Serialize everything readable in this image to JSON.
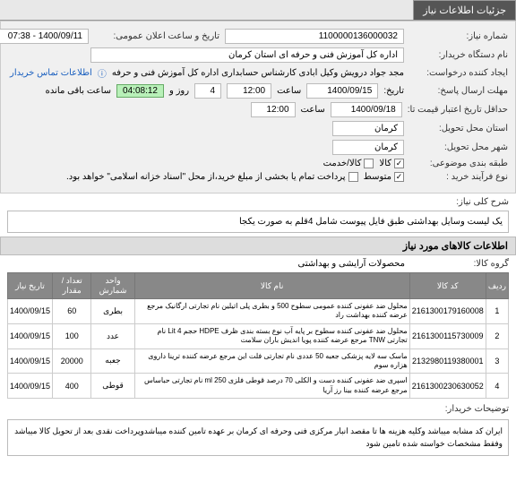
{
  "tabs": {
    "main": "جزئیات اطلاعات نیاز"
  },
  "fields": {
    "need_number_label": "شماره نیاز:",
    "need_number": "1100000136000032",
    "announce_label": "تاریخ و ساعت اعلان عمومی:",
    "announce_value": "1400/09/11 - 07:38",
    "buyer_org_label": "نام دستگاه خریدار:",
    "buyer_org": "اداره کل آموزش فنی و حرفه ای استان کرمان",
    "requester_label": "ایجاد کننده درخواست:",
    "requester": "مجد جواد درویش وکیل ابادی کارشناس حسابداری اداره کل آموزش فنی و حرفه",
    "contact_link": "اطلاعات تماس خریدار",
    "deadline_label": "مهلت ارسال پاسخ:",
    "deadline_tarikh_label": "تاریخ:",
    "deadline_date": "1400/09/15",
    "deadline_saat_label": "ساعت",
    "deadline_time": "12:00",
    "remaining_days": "4",
    "remaining_days_label": "روز و",
    "countdown": "04:08:12",
    "remaining_label": "ساعت باقی مانده",
    "credit_label": "حداقل تاریخ اعتبار قیمت تا:",
    "credit_date": "1400/09/18",
    "credit_time": "12:00",
    "delivery_province_label": "استان محل تحویل:",
    "delivery_province": "کرمان",
    "delivery_city_label": "شهر محل تحویل:",
    "delivery_city": "کرمان",
    "subject_class_label": "طبقه بندی موضوعی:",
    "chk_product": "کالا",
    "chk_service": "کالا/خدمت",
    "process_type_label": "نوع فرآیند خرید :",
    "chk_medium": "متوسط",
    "process_note": "پرداخت تمام یا بخشی از مبلغ خرید،از محل \"اسناد خزانه اسلامی\" خواهد بود.",
    "desc_label": "شرح کلی نیاز:",
    "desc_text": "یک لیست وسایل بهداشتی طبق فایل پیوست شامل 4قلم به صورت یکجا",
    "items_header": "اطلاعات کالاهای مورد نیاز",
    "group_label": "گروه کالا:",
    "group_value": "محصولات آرایشی و بهداشتی",
    "buyer_note_label": "توضیحات خریدار:",
    "buyer_note": "ایران کد مشابه میباشد وکلیه هزینه ها تا مقصد انبار مرکزی فنی وحرفه ای کرمان بر عهده تامین کننده میباشدوپرداخت نقدی بعد از تحویل کالا میباشد وفقط مشخصات خواسته شده تامین شود"
  },
  "table": {
    "cols": {
      "row": "ردیف",
      "code": "کد کالا",
      "name": "نام کالا",
      "unit": "واحد شمارش",
      "qty": "تعداد / مقدار",
      "date": "تاریخ نیاز"
    },
    "rows": [
      {
        "n": "1",
        "code": "2161300179160008",
        "name": "محلول ضد عفونی کننده عمومی سطوح 500 و بطری پلی اتیلین نام تجارتی ارگانیک مرجع عرضه کننده بهداشت راد",
        "unit": "بطری",
        "qty": "60",
        "date": "1400/09/15"
      },
      {
        "n": "2",
        "code": "2161300115730009",
        "name": "محلول ضد عفونی کننده سطوح بر پایه آب نوع بسته بندی ظرف HDPE حجم Lit 4 نام تجارتی TNW مرجع عرضه کننده پویا اندیش باران سلامت",
        "unit": "عدد",
        "qty": "100",
        "date": "1400/09/15"
      },
      {
        "n": "3",
        "code": "2132980119380001",
        "name": "ماسک سه لایه پزشکی جعبه 50 عددی نام تجارتی فلت این مرجع عرضه کننده ترینا داروی هزاره سوم",
        "unit": "جعبه",
        "qty": "20000",
        "date": "1400/09/15"
      },
      {
        "n": "4",
        "code": "2161300230630052",
        "name": "اسپری ضد عفونی کننده دست و الکلی 70 درصد قوطی فلزی ml 250 نام تجارتی حباساس مرجع عرضه کننده بینا رز آریا",
        "unit": "قوطی",
        "qty": "400",
        "date": "1400/09/15"
      }
    ]
  }
}
